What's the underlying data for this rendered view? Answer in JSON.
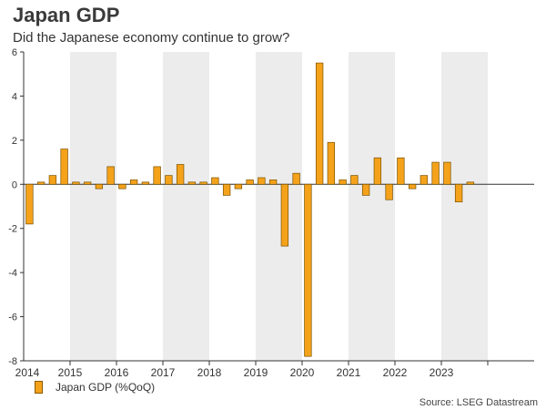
{
  "title": "Japan GDP",
  "subtitle": "Did the Japanese economy continue to grow?",
  "source": "Source: LSEG Datastream",
  "colors": {
    "bar": "#f5a21b",
    "bar_border": "#7a5200",
    "band": "#ececec",
    "axis": "#333333"
  },
  "chart_data": {
    "type": "bar",
    "title": "Japan GDP",
    "subtitle": "Did the Japanese economy continue to grow?",
    "xlabel": "",
    "ylabel": "",
    "ylim": [
      -8,
      6
    ],
    "yticks": [
      -8,
      -6,
      -4,
      -2,
      0,
      2,
      4,
      6
    ],
    "grid": false,
    "legend": "bottom-left",
    "year_labels": [
      "2014",
      "2015",
      "2016",
      "2017",
      "2018",
      "2019",
      "2020",
      "2021",
      "2022",
      "2023"
    ],
    "categories": [
      "2014Q1",
      "2014Q2",
      "2014Q3",
      "2014Q4",
      "2015Q1",
      "2015Q2",
      "2015Q3",
      "2015Q4",
      "2016Q1",
      "2016Q2",
      "2016Q3",
      "2016Q4",
      "2017Q1",
      "2017Q2",
      "2017Q3",
      "2017Q4",
      "2018Q1",
      "2018Q2",
      "2018Q3",
      "2018Q4",
      "2019Q1",
      "2019Q2",
      "2019Q3",
      "2019Q4",
      "2020Q1",
      "2020Q2",
      "2020Q3",
      "2020Q4",
      "2021Q1",
      "2021Q2",
      "2021Q3",
      "2021Q4",
      "2022Q1",
      "2022Q2",
      "2022Q3",
      "2022Q4",
      "2023Q1",
      "2023Q2",
      "2023Q3",
      "2023Q4"
    ],
    "series": [
      {
        "name": "Japan GDP (%QoQ)",
        "values": [
          -1.8,
          0.1,
          0.4,
          1.6,
          0.1,
          0.1,
          -0.2,
          0.8,
          -0.2,
          0.2,
          0.1,
          0.8,
          0.4,
          0.9,
          0.1,
          0.1,
          0.3,
          -0.5,
          -0.2,
          0.2,
          0.3,
          0.2,
          -2.8,
          0.5,
          -7.8,
          5.5,
          1.9,
          0.2,
          0.4,
          -0.5,
          1.2,
          -0.7,
          1.2,
          -0.2,
          0.4,
          1.0,
          1.0,
          -0.8,
          0.1,
          null
        ]
      }
    ]
  }
}
